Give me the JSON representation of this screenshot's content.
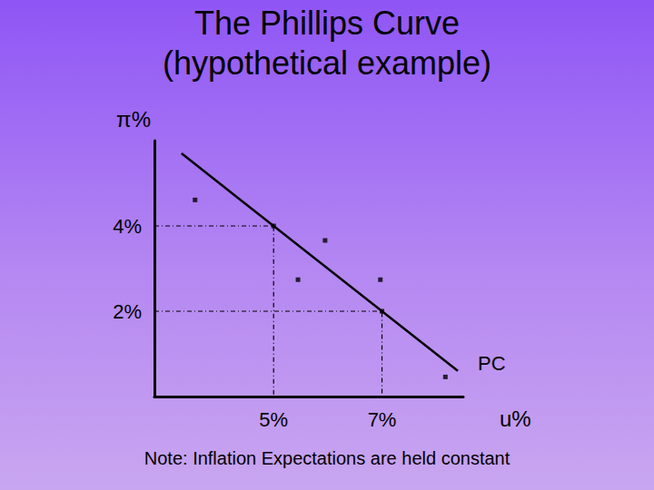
{
  "chart_data": {
    "type": "line",
    "title": "The Phillips Curve",
    "subtitle": "(hypothetical example)",
    "x_label": "u%",
    "y_label": "π%",
    "note": "Note: Inflation Expectations are held constant",
    "xlim": [
      2.8,
      8.5
    ],
    "xticks": [
      {
        "value": 5,
        "label": "5%"
      },
      {
        "value": 7,
        "label": "7%"
      }
    ],
    "ylim": [
      0,
      6
    ],
    "yticks": [
      {
        "value": 2,
        "label": "2%"
      },
      {
        "value": 4,
        "label": "4%"
      }
    ],
    "grid": false,
    "series": [
      {
        "name": "PC",
        "type": "line",
        "color": "#000000",
        "x": [
          3.3,
          8.4
        ],
        "values": [
          5.7,
          0.6
        ]
      },
      {
        "type": "scatter",
        "color": "#000000",
        "marker": "square",
        "x": [
          3.55,
          5,
          5.95,
          5.45,
          6.97,
          7,
          8.17
        ],
        "values": [
          4.61,
          4,
          3.66,
          2.74,
          2.74,
          2,
          0.46
        ]
      },
      {
        "type": "line",
        "line_style": "dashed",
        "color": "#000000",
        "x": [
          2.8,
          5,
          5
        ],
        "values": [
          4,
          4,
          0
        ]
      },
      {
        "type": "line",
        "line_style": "dashed",
        "color": "#000000",
        "x": [
          2.8,
          7,
          7
        ],
        "values": [
          2,
          2,
          0
        ]
      }
    ]
  }
}
